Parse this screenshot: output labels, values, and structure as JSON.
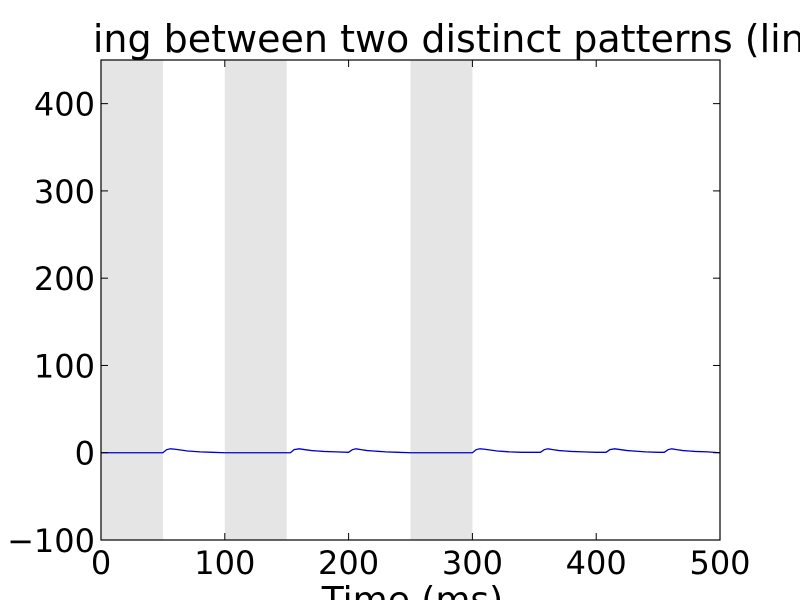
{
  "chart_data": {
    "type": "line",
    "title": "ing between two distinct patterns (line",
    "xlabel": "Time (ms)",
    "ylabel": "",
    "xlim": [
      0,
      500
    ],
    "ylim": [
      -100,
      450
    ],
    "x_ticks": [
      0,
      100,
      200,
      300,
      400,
      500
    ],
    "y_ticks": [
      -100,
      0,
      100,
      200,
      300,
      400
    ],
    "x_tick_labels": [
      "0",
      "100",
      "200",
      "300",
      "400",
      "500"
    ],
    "y_tick_labels": [
      "−100",
      "0",
      "100",
      "200",
      "300",
      "400"
    ],
    "grid": false,
    "shaded_intervals": [
      [
        0,
        50
      ],
      [
        100,
        150
      ],
      [
        250,
        300
      ]
    ],
    "shade_color": "#e5e5e5",
    "series": [
      {
        "color": "#0000cc",
        "x": [
          0,
          50,
          53,
          56,
          60,
          65,
          70,
          80,
          90,
          100,
          110,
          120,
          130,
          140,
          150,
          153,
          156,
          160,
          165,
          170,
          175,
          180,
          190,
          200,
          203,
          206,
          210,
          215,
          220,
          225,
          230,
          240,
          250,
          260,
          270,
          280,
          290,
          300,
          303,
          306,
          310,
          315,
          320,
          325,
          330,
          340,
          350,
          355,
          358,
          361,
          365,
          370,
          375,
          380,
          390,
          400,
          405,
          408,
          411,
          415,
          420,
          425,
          430,
          440,
          450,
          455,
          458,
          461,
          465,
          470,
          475,
          480,
          490,
          500
        ],
        "y": [
          0,
          0,
          3.5,
          4.5,
          4,
          3,
          2,
          1,
          0.5,
          0,
          0,
          0,
          0,
          0,
          0,
          0,
          3.5,
          4.5,
          3.5,
          2.5,
          2,
          1.5,
          1,
          0.5,
          3.5,
          4.5,
          3.5,
          2.5,
          2,
          1.5,
          1,
          0.5,
          0,
          0,
          0,
          0,
          0,
          0,
          3.5,
          4.5,
          4,
          3,
          2,
          1.5,
          1,
          0.5,
          0.5,
          0.5,
          3.5,
          4.5,
          3.5,
          2.5,
          2,
          1.5,
          1,
          0.5,
          0.5,
          0.5,
          3.5,
          4.5,
          3.5,
          2.5,
          2,
          1,
          0.5,
          0.5,
          3.5,
          4.5,
          3.5,
          2.5,
          2,
          1.5,
          1,
          0
        ]
      }
    ]
  }
}
